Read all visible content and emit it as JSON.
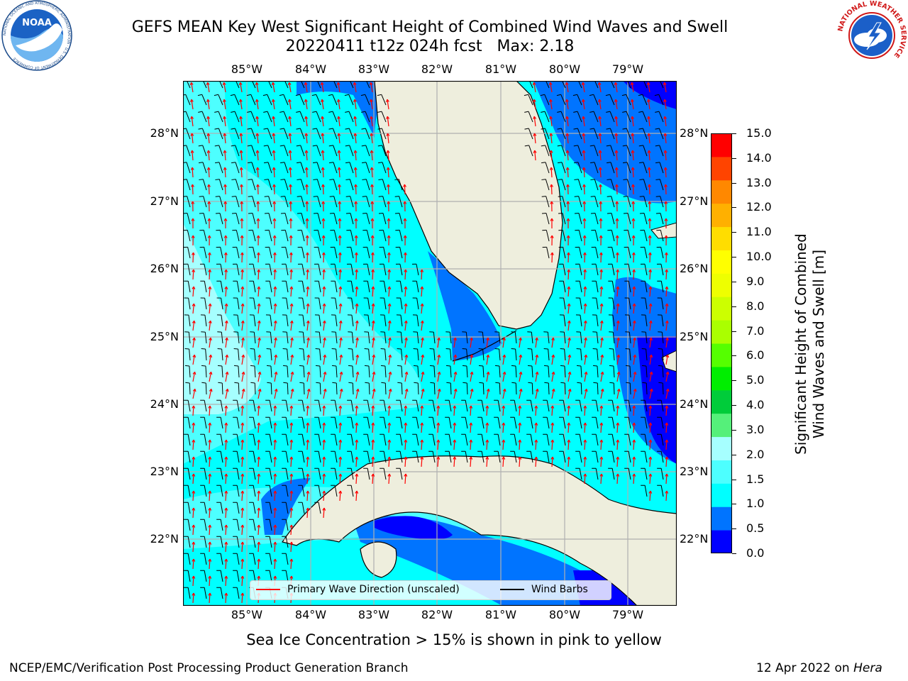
{
  "title": {
    "line1": "GEFS MEAN Key West Significant Height of Combined Wind Waves and Swell",
    "line2": "20220411 t12z 024h fcst   Max: 2.18"
  },
  "axes": {
    "lon_labels": [
      "85°W",
      "84°W",
      "83°W",
      "82°W",
      "81°W",
      "80°W",
      "79°W"
    ],
    "lat_labels": [
      "28°N",
      "27°N",
      "26°N",
      "25°N",
      "24°N",
      "23°N",
      "22°N"
    ]
  },
  "colorbar": {
    "title_line1": "Significant Height of Combined",
    "title_line2": "Wind Waves and Swell [m]",
    "labels": [
      "15.0",
      "14.0",
      "13.0",
      "12.0",
      "11.0",
      "10.0",
      "9.0",
      "8.0",
      "7.0",
      "6.0",
      "5.0",
      "4.0",
      "3.0",
      "2.0",
      "1.5",
      "1.0",
      "0.5",
      "0.0"
    ],
    "colors": [
      "#0000ff",
      "#0074ff",
      "#00ffff",
      "#4dffff",
      "#a6ffff",
      "#55f07a",
      "#00cc3a",
      "#00ee00",
      "#55ff00",
      "#aaff00",
      "#ccff00",
      "#eeff00",
      "#ffff00",
      "#ffdd00",
      "#ffb000",
      "#ff8800",
      "#ff4400",
      "#ff0000"
    ]
  },
  "legend": {
    "wave_dir": "Primary Wave Direction (unscaled)",
    "wind_barbs": "Wind Barbs",
    "wave_color": "#ff0000",
    "barb_color": "#000000"
  },
  "footer": {
    "sea_ice": "Sea Ice Concentration > 15% is shown in pink to yellow",
    "credit": "NCEP/EMC/Verification Post Processing Product Generation Branch",
    "date": "12 Apr 2022 on",
    "machine": "Hera"
  },
  "logos": {
    "left": "noaa-logo",
    "right": "nws-logo",
    "noaa_text": "NOAA",
    "noaa_ring": "NATIONAL OCEANIC AND ATMOSPHERIC ADMINISTRATION · U.S. DEPARTMENT OF COMMERCE",
    "nws_ring": "NATIONAL WEATHER SERVICE"
  },
  "map_colors": {
    "land": "#eeeedd",
    "coast": "#000000",
    "grid": "#b0b0b0"
  }
}
